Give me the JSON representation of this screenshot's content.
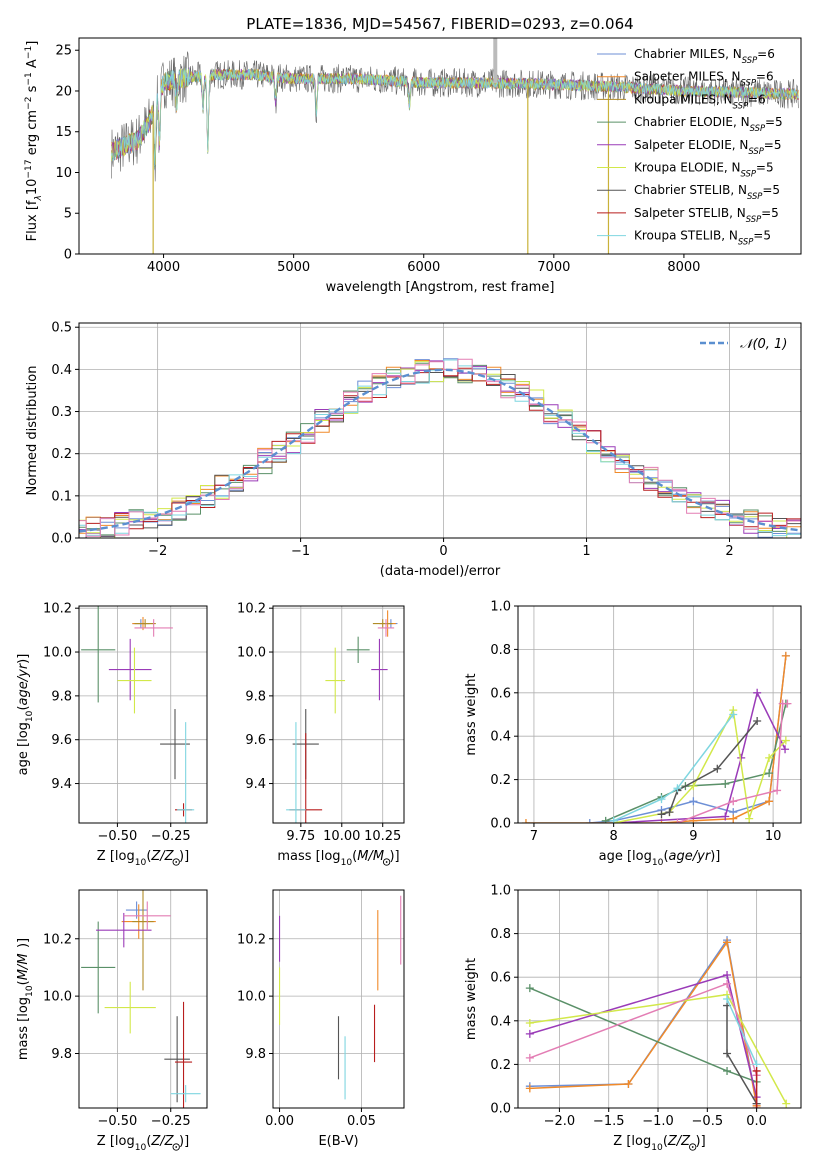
{
  "figure_title": "PLATE=1836, MJD=54567, FIBERID=0293, z=0.064",
  "colors": {
    "c1": "#6d8fd6",
    "c2": "#f08a2a",
    "c3": "#b08c28",
    "c4": "#5a9068",
    "c5": "#9a3bb8",
    "c6": "#d2e84a",
    "c7": "#555555",
    "c8": "#b81e1e",
    "c9": "#7fd6e0",
    "normal": "#5b8fd0",
    "grid": "#b0b0b0"
  },
  "chart_data": [
    {
      "id": "spectrum",
      "type": "line",
      "title": "",
      "xlabel": "wavelength [Angstrom, rest frame]",
      "ylabel_parts": [
        "Flux [f",
        "λ",
        "10",
        "−17",
        " erg cm",
        "−2",
        " s",
        "−1",
        " A",
        "−1",
        "]"
      ],
      "xlim": [
        3350,
        8900
      ],
      "ylim": [
        0,
        26.5
      ],
      "xticks": [
        4000,
        5000,
        6000,
        7000,
        8000
      ],
      "yticks": [
        0,
        5,
        10,
        15,
        20,
        25
      ],
      "grid": false,
      "legend_placement": "top-right",
      "legend": [
        {
          "model": "Chabrier MILES, N",
          "sub": "SSP",
          "n": "=6",
          "color": "#6d8fd6"
        },
        {
          "model": "Salpeter MILES, N",
          "sub": "SSP",
          "n": "=6",
          "color": "#f08a2a"
        },
        {
          "model": "Kroupa MILES, N",
          "sub": "SSP",
          "n": "=6",
          "color": "#b08c28"
        },
        {
          "model": "Chabrier ELODIE, N",
          "sub": "SSP",
          "n": "=5",
          "color": "#5a9068"
        },
        {
          "model": "Salpeter ELODIE, N",
          "sub": "SSP",
          "n": "=5",
          "color": "#9a3bb8"
        },
        {
          "model": "Kroupa ELODIE, N",
          "sub": "SSP",
          "n": "=5",
          "color": "#d2e84a"
        },
        {
          "model": "Chabrier STELIB, N",
          "sub": "SSP",
          "n": "=5",
          "color": "#555555"
        },
        {
          "model": "Salpeter STELIB, N",
          "sub": "SSP",
          "n": "=5",
          "color": "#b81e1e"
        },
        {
          "model": "Kroupa STELIB, N",
          "sub": "SSP",
          "n": "=5",
          "color": "#7fd6e0"
        }
      ],
      "continuum": [
        [
          3600,
          12.5
        ],
        [
          3800,
          14
        ],
        [
          3900,
          16.5
        ],
        [
          3960,
          19.5
        ],
        [
          4000,
          21
        ],
        [
          4100,
          21.5
        ],
        [
          4400,
          22
        ],
        [
          4700,
          22
        ],
        [
          5000,
          21.5
        ],
        [
          5500,
          21.5
        ],
        [
          6000,
          21
        ],
        [
          6500,
          21
        ],
        [
          7000,
          20.8
        ],
        [
          7500,
          20.5
        ],
        [
          8000,
          20
        ],
        [
          8500,
          19.8
        ],
        [
          8880,
          19.6
        ]
      ],
      "absorption": [
        [
          3934,
          -7
        ],
        [
          3968,
          -6
        ],
        [
          4101,
          -3
        ],
        [
          4304,
          -4
        ],
        [
          4340,
          -9
        ],
        [
          4861,
          -3
        ],
        [
          5175,
          -4
        ],
        [
          5890,
          -3
        ]
      ],
      "spikes": [
        [
          6550,
          26.5
        ],
        [
          6800,
          0
        ],
        [
          7420,
          0
        ],
        [
          3920,
          0
        ]
      ]
    },
    {
      "id": "residuals",
      "type": "histogram",
      "title": "",
      "xlabel": "(data-model)/error",
      "ylabel": "Normed distribution",
      "xlim": [
        -2.55,
        2.5
      ],
      "ylim": [
        0,
        0.51
      ],
      "xticks": [
        -2,
        -1,
        0,
        1,
        2
      ],
      "yticks": [
        0.0,
        0.1,
        0.2,
        0.3,
        0.4,
        0.5
      ],
      "grid": true,
      "legend_placement": "top-right",
      "legend": [
        {
          "label": "𝒩(0, 1)",
          "style": "dashed",
          "color": "#5b8fd0"
        }
      ],
      "bin_width": 0.1
    },
    {
      "id": "z-age",
      "type": "scatter",
      "title": "",
      "xlabel_pre": "Z [log",
      "xlabel_sub": "10",
      "xlabel_post": "(Z/Z",
      "xlabel_end": ")]",
      "ylabel_pre": "age  [log",
      "ylabel_sub": "10",
      "ylabel_post": "(age/yr)]",
      "xlim": [
        -0.68,
        -0.08
      ],
      "ylim": [
        9.22,
        10.21
      ],
      "xticks": [
        -0.5,
        -0.25
      ],
      "xtick_labels": [
        "−0.50",
        "−0.25"
      ],
      "yticks": [
        9.4,
        9.6,
        9.8,
        10.0,
        10.2
      ],
      "grid": true,
      "points": [
        {
          "x": -0.39,
          "y": 10.13,
          "ex": 0.04,
          "ey": 0.02,
          "color": "#6d8fd6"
        },
        {
          "x": -0.38,
          "y": 10.13,
          "ex": 0.05,
          "ey": 0.03,
          "color": "#f08a2a"
        },
        {
          "x": -0.37,
          "y": 10.13,
          "ex": 0.05,
          "ey": 0.02,
          "color": "#b08c28"
        },
        {
          "x": -0.59,
          "y": 10.01,
          "ex": 0.08,
          "ey": 0.24,
          "color": "#5a9068"
        },
        {
          "x": -0.44,
          "y": 9.92,
          "ex": 0.1,
          "ey": 0.14,
          "color": "#9a3bb8"
        },
        {
          "x": -0.42,
          "y": 9.87,
          "ex": 0.08,
          "ey": 0.15,
          "color": "#d2e84a"
        },
        {
          "x": -0.23,
          "y": 9.58,
          "ex": 0.07,
          "ey": 0.16,
          "color": "#555555"
        },
        {
          "x": -0.19,
          "y": 9.28,
          "ex": 0.04,
          "ey": 0.03,
          "color": "#b81e1e"
        },
        {
          "x": -0.18,
          "y": 9.28,
          "ex": 0.04,
          "ey": 0.4,
          "color": "#7fd6e0"
        },
        {
          "x": -0.33,
          "y": 10.11,
          "ex": 0.09,
          "ey": 0.04,
          "color": "#e37db4"
        }
      ]
    },
    {
      "id": "mass-age",
      "type": "scatter",
      "title": "",
      "xlabel_pre": "mass [log",
      "xlabel_sub": "10",
      "xlabel_post": "(M/M",
      "xlabel_end": ")]",
      "xlim": [
        9.58,
        10.38
      ],
      "ylim": [
        9.22,
        10.21
      ],
      "xticks": [
        9.75,
        10.0,
        10.25
      ],
      "xtick_labels": [
        "9.75",
        "10.00",
        "10.25"
      ],
      "yticks": [
        9.4,
        9.6,
        9.8,
        10.0,
        10.2
      ],
      "grid": true,
      "points": [
        {
          "x": 10.3,
          "y": 10.13,
          "ex": 0.04,
          "ey": 0.02,
          "color": "#6d8fd6"
        },
        {
          "x": 10.28,
          "y": 10.13,
          "ex": 0.05,
          "ey": 0.06,
          "color": "#f08a2a"
        },
        {
          "x": 10.25,
          "y": 10.13,
          "ex": 0.06,
          "ey": 0.02,
          "color": "#b08c28"
        },
        {
          "x": 10.1,
          "y": 10.01,
          "ex": 0.07,
          "ey": 0.06,
          "color": "#5a9068"
        },
        {
          "x": 10.23,
          "y": 9.92,
          "ex": 0.05,
          "ey": 0.14,
          "color": "#9a3bb8"
        },
        {
          "x": 9.96,
          "y": 9.87,
          "ex": 0.06,
          "ey": 0.15,
          "color": "#d2e84a"
        },
        {
          "x": 9.78,
          "y": 9.58,
          "ex": 0.08,
          "ey": 0.16,
          "color": "#555555"
        },
        {
          "x": 9.78,
          "y": 9.28,
          "ex": 0.1,
          "ey": 0.35,
          "color": "#b81e1e"
        },
        {
          "x": 9.72,
          "y": 9.28,
          "ex": 0.06,
          "ey": 0.4,
          "color": "#7fd6e0"
        },
        {
          "x": 10.27,
          "y": 10.11,
          "ex": 0.05,
          "ey": 0.04,
          "color": "#e37db4"
        }
      ]
    },
    {
      "id": "age-weight",
      "type": "line",
      "title": "",
      "xlabel_pre": "age  [log",
      "xlabel_sub": "10",
      "xlabel_post": "(age/yr)]",
      "ylabel": "mass weight",
      "xlim": [
        6.8,
        10.35
      ],
      "ylim": [
        0,
        1.0
      ],
      "xticks": [
        7,
        8,
        9,
        10
      ],
      "yticks": [
        0.0,
        0.2,
        0.4,
        0.6,
        0.8,
        1.0
      ],
      "grid": true,
      "series": [
        {
          "color": "#6d8fd6",
          "x": [
            7.7,
            8.0,
            8.6,
            9.0,
            9.5,
            9.95,
            10.16
          ],
          "y": [
            0.0,
            0.01,
            0.06,
            0.1,
            0.05,
            0.1,
            0.77
          ]
        },
        {
          "color": "#f08a2a",
          "x": [
            6.9,
            8.6,
            9.0,
            9.5,
            9.95,
            10.16
          ],
          "y": [
            0.0,
            0.0,
            0.01,
            0.02,
            0.1,
            0.77
          ]
        },
        {
          "color": "#5a9068",
          "x": [
            7.9,
            8.6,
            8.9,
            9.4,
            9.95,
            10.16
          ],
          "y": [
            0.01,
            0.12,
            0.17,
            0.18,
            0.23,
            0.55
          ]
        },
        {
          "color": "#9a3bb8",
          "x": [
            8.0,
            9.4,
            9.6,
            9.8,
            10.15
          ],
          "y": [
            0.0,
            0.03,
            0.3,
            0.6,
            0.34
          ]
        },
        {
          "color": "#d2e84a",
          "x": [
            8.0,
            8.7,
            9.0,
            9.5,
            9.7,
            9.95,
            10.16
          ],
          "y": [
            0.0,
            0.05,
            0.17,
            0.52,
            0.02,
            0.3,
            0.38
          ]
        },
        {
          "color": "#555555",
          "x": [
            8.6,
            8.7,
            8.8,
            9.3,
            9.8
          ],
          "y": [
            0.04,
            0.05,
            0.15,
            0.25,
            0.47
          ]
        },
        {
          "color": "#e37db4",
          "x": [
            8.8,
            9.5,
            10.05,
            10.12,
            10.18
          ],
          "y": [
            0.0,
            0.1,
            0.15,
            0.55,
            0.55
          ]
        },
        {
          "color": "#7fd6e0",
          "x": [
            8.0,
            8.6,
            8.8,
            9.5
          ],
          "y": [
            0.01,
            0.11,
            0.16,
            0.5
          ]
        }
      ]
    },
    {
      "id": "z-mass",
      "type": "scatter",
      "title": "",
      "xlabel_pre": "Z [log",
      "xlabel_sub": "10",
      "xlabel_post": "(Z/Z",
      "xlabel_end": ")]",
      "ylabel_pre": "mass [log",
      "ylabel_sub": "10",
      "ylabel_post": "(M/M",
      "ylabel_end": ")]",
      "xlim": [
        -0.68,
        -0.08
      ],
      "ylim": [
        9.61,
        10.37
      ],
      "xticks": [
        -0.5,
        -0.25
      ],
      "xtick_labels": [
        "−0.50",
        "−0.25"
      ],
      "yticks": [
        9.8,
        10.0,
        10.2
      ],
      "grid": true,
      "points": [
        {
          "x": -0.41,
          "y": 10.3,
          "ex": 0.05,
          "ey": 0.03,
          "color": "#6d8fd6"
        },
        {
          "x": -0.4,
          "y": 10.26,
          "ex": 0.08,
          "ey": 0.06,
          "color": "#f08a2a"
        },
        {
          "x": -0.38,
          "y": 10.26,
          "ex": 0.05,
          "ey": 0.24,
          "color": "#b08c28"
        },
        {
          "x": -0.59,
          "y": 10.1,
          "ex": 0.08,
          "ey": 0.16,
          "color": "#5a9068"
        },
        {
          "x": -0.47,
          "y": 10.23,
          "ex": 0.13,
          "ey": 0.06,
          "color": "#9a3bb8"
        },
        {
          "x": -0.44,
          "y": 9.96,
          "ex": 0.12,
          "ey": 0.09,
          "color": "#d2e84a"
        },
        {
          "x": -0.22,
          "y": 9.78,
          "ex": 0.06,
          "ey": 0.15,
          "color": "#555555"
        },
        {
          "x": -0.19,
          "y": 9.77,
          "ex": 0.04,
          "ey": 0.21,
          "color": "#b81e1e"
        },
        {
          "x": -0.18,
          "y": 9.66,
          "ex": 0.07,
          "ey": 0.03,
          "color": "#7fd6e0"
        },
        {
          "x": -0.36,
          "y": 10.28,
          "ex": 0.11,
          "ey": 0.05,
          "color": "#e37db4"
        }
      ]
    },
    {
      "id": "ebv-mass",
      "type": "scatter",
      "title": "",
      "xlabel": "E(B-V)",
      "xlim": [
        -0.004,
        0.076
      ],
      "ylim": [
        9.61,
        10.37
      ],
      "xticks": [
        0.0,
        0.05
      ],
      "xtick_labels": [
        "0.00",
        "0.05"
      ],
      "yticks": [
        9.8,
        10.0,
        10.2
      ],
      "grid": true,
      "points": [
        {
          "x": 0.0,
          "y": 10.2,
          "ey": 0.08,
          "color": "#9a3bb8"
        },
        {
          "x": 0.0,
          "y": 10.0,
          "ey": 0.1,
          "color": "#d2e84a"
        },
        {
          "x": 0.036,
          "y": 9.82,
          "ey": 0.11,
          "color": "#555555"
        },
        {
          "x": 0.04,
          "y": 9.75,
          "ey": 0.11,
          "color": "#7fd6e0"
        },
        {
          "x": 0.058,
          "y": 9.87,
          "ey": 0.1,
          "color": "#b81e1e"
        },
        {
          "x": 0.06,
          "y": 10.16,
          "ey": 0.14,
          "color": "#f08a2a"
        },
        {
          "x": 0.074,
          "y": 10.23,
          "ey": 0.12,
          "color": "#e37db4"
        }
      ]
    },
    {
      "id": "z-weight",
      "type": "line",
      "title": "",
      "xlabel_pre": "Z [log",
      "xlabel_sub": "10",
      "xlabel_post": "(Z/Z",
      "xlabel_end": ")]",
      "ylabel": "mass weight",
      "xlim": [
        -2.42,
        0.45
      ],
      "ylim": [
        0,
        1.0
      ],
      "xticks": [
        -2.0,
        -1.5,
        -1.0,
        -0.5,
        0.0
      ],
      "xtick_labels": [
        "−2.0",
        "−1.5",
        "−1.0",
        "−0.5",
        "0.0"
      ],
      "yticks": [
        0.0,
        0.2,
        0.4,
        0.6,
        0.8,
        1.0
      ],
      "grid": true,
      "series": [
        {
          "color": "#6d8fd6",
          "x": [
            -2.3,
            -1.3,
            -0.3,
            0.0
          ],
          "y": [
            0.1,
            0.11,
            0.77,
            0.02
          ]
        },
        {
          "color": "#f08a2a",
          "x": [
            -2.3,
            -1.3,
            -0.3,
            0.0
          ],
          "y": [
            0.09,
            0.11,
            0.76,
            0.01
          ]
        },
        {
          "color": "#5a9068",
          "x": [
            -2.3,
            -0.3,
            0.0
          ],
          "y": [
            0.55,
            0.17,
            0.12
          ]
        },
        {
          "color": "#9a3bb8",
          "x": [
            -2.3,
            -0.3,
            0.0
          ],
          "y": [
            0.34,
            0.61,
            0.05
          ]
        },
        {
          "color": "#d2e84a",
          "x": [
            -2.3,
            -0.3,
            0.3
          ],
          "y": [
            0.39,
            0.52,
            0.02
          ]
        },
        {
          "color": "#555555",
          "x": [
            -0.3,
            -0.3,
            0.0
          ],
          "y": [
            0.47,
            0.25,
            0.02
          ]
        },
        {
          "color": "#e37db4",
          "x": [
            -2.3,
            -0.3,
            0.0
          ],
          "y": [
            0.23,
            0.57,
            0.15
          ]
        },
        {
          "color": "#7fd6e0",
          "x": [
            -0.3,
            0.0
          ],
          "y": [
            0.5,
            0.2
          ]
        },
        {
          "color": "#b81e1e",
          "x": [
            0.0,
            0.0
          ],
          "y": [
            0.0,
            0.17
          ]
        }
      ]
    }
  ]
}
